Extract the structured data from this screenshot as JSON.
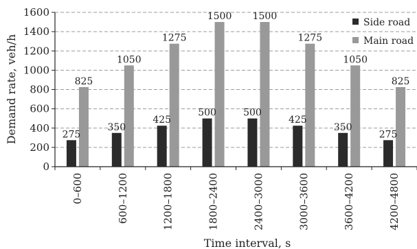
{
  "chart_data": {
    "type": "bar",
    "title": "",
    "xlabel": "Time interval, s",
    "ylabel": "Demand rate, veh/h",
    "ylim": [
      0,
      1600
    ],
    "yticks": [
      0,
      200,
      400,
      600,
      800,
      1000,
      1200,
      1400,
      1600
    ],
    "grid": true,
    "legend_position": "top-right",
    "categories": [
      "0–600",
      "600–1200",
      "1200–1800",
      "1800–2400",
      "2400–3000",
      "3000–3600",
      "3600–4200",
      "4200–4800"
    ],
    "series": [
      {
        "name": "Side road",
        "color": "#2b2b2b",
        "values": [
          275,
          350,
          425,
          500,
          500,
          425,
          350,
          275
        ]
      },
      {
        "name": "Main road",
        "color": "#999999",
        "values": [
          825,
          1050,
          1275,
          1500,
          1500,
          1275,
          1050,
          825
        ]
      }
    ]
  }
}
